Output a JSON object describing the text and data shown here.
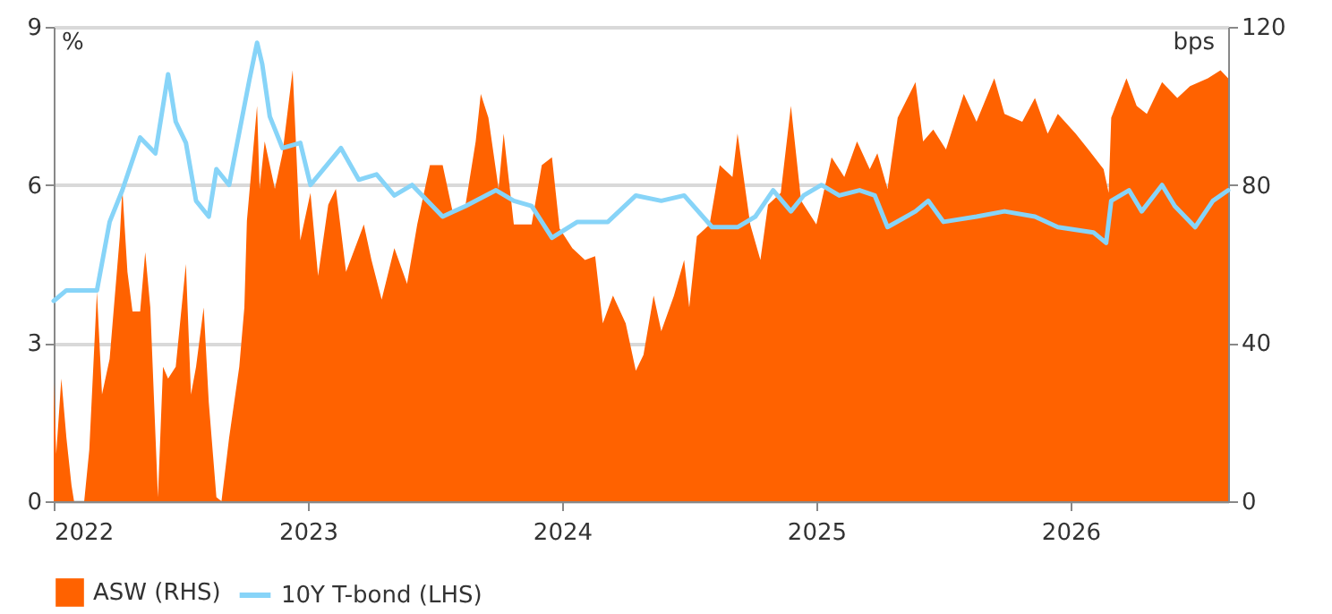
{
  "chart_data": {
    "type": "line",
    "ylabel": "%",
    "y2label": "bps",
    "xlim": [
      2022,
      2026.62
    ],
    "xticks": [
      2022,
      2023,
      2024,
      2025,
      2026
    ],
    "ylim": [
      0,
      9
    ],
    "yticks": [
      0,
      3,
      6,
      9
    ],
    "y2lim": [
      0,
      120
    ],
    "y2ticks": [
      0,
      40,
      80,
      120
    ],
    "grid": "y",
    "legend": "bottom",
    "line_style": "solid",
    "marker": "none",
    "series": [
      {
        "name": "ASW (RHS)",
        "type": "area",
        "axis": "y2",
        "color": "#ff6200",
        "x": [
          2022.0,
          2022.01,
          2022.03,
          2022.05,
          2022.07,
          2022.08,
          2022.12,
          2022.14,
          2022.17,
          2022.19,
          2022.22,
          2022.26,
          2022.27,
          2022.29,
          2022.31,
          2022.34,
          2022.36,
          2022.38,
          2022.41,
          2022.43,
          2022.45,
          2022.48,
          2022.52,
          2022.54,
          2022.56,
          2022.59,
          2022.61,
          2022.64,
          2022.66,
          2022.69,
          2022.73,
          2022.75,
          2022.76,
          2022.8,
          2022.81,
          2022.83,
          2022.87,
          2022.9,
          2022.94,
          2022.97,
          2023.01,
          2023.04,
          2023.08,
          2023.11,
          2023.15,
          2023.22,
          2023.25,
          2023.29,
          2023.34,
          2023.39,
          2023.43,
          2023.48,
          2023.53,
          2023.57,
          2023.62,
          2023.66,
          2023.68,
          2023.71,
          2023.75,
          2023.77,
          2023.81,
          2023.88,
          2023.92,
          2023.96,
          2023.99,
          2024.04,
          2024.09,
          2024.13,
          2024.16,
          2024.2,
          2024.25,
          2024.29,
          2024.32,
          2024.36,
          2024.39,
          2024.44,
          2024.48,
          2024.5,
          2024.53,
          2024.58,
          2024.62,
          2024.67,
          2024.69,
          2024.74,
          2024.78,
          2024.81,
          2024.86,
          2024.88,
          2024.9,
          2024.94,
          2025.0,
          2025.06,
          2025.11,
          2025.16,
          2025.21,
          2025.24,
          2025.28,
          2025.32,
          2025.39,
          2025.42,
          2025.46,
          2025.51,
          2025.58,
          2025.63,
          2025.7,
          2025.74,
          2025.81,
          2025.86,
          2025.91,
          2025.95,
          2026.02,
          2026.07,
          2026.13,
          2026.15,
          2026.16,
          2026.22,
          2026.26,
          2026.3,
          2026.36,
          2026.42,
          2026.47,
          2026.54,
          2026.59,
          2026.62
        ],
        "values": [
          30,
          12,
          31,
          16,
          4,
          0,
          0,
          13,
          53,
          27,
          36,
          67,
          79,
          58,
          48,
          48,
          63,
          49,
          1,
          34,
          31,
          34,
          60,
          27,
          34,
          49,
          25,
          1,
          0,
          16,
          34,
          49,
          71,
          100,
          79,
          91,
          79,
          88,
          109,
          66,
          78,
          57,
          75,
          79,
          58,
          70,
          61,
          51,
          64,
          55,
          70,
          85,
          85,
          73,
          75,
          91,
          103,
          97,
          79,
          93,
          70,
          70,
          85,
          87,
          69,
          64,
          61,
          62,
          45,
          52,
          45,
          33,
          37,
          52,
          43,
          52,
          61,
          49,
          67,
          70,
          85,
          82,
          93,
          70,
          61,
          75,
          78,
          89,
          100,
          76,
          70,
          87,
          82,
          91,
          84,
          88,
          79,
          97,
          106,
          91,
          94,
          89,
          103,
          96,
          107,
          98,
          96,
          102,
          93,
          98,
          93,
          89,
          84,
          78,
          97,
          107,
          100,
          98,
          106,
          102,
          105,
          107,
          109,
          107
        ]
      },
      {
        "name": "10Y T-bond (LHS)",
        "color": "#87d4f8",
        "x": [
          2022.0,
          2022.05,
          2022.17,
          2022.22,
          2022.27,
          2022.34,
          2022.4,
          2022.45,
          2022.48,
          2022.52,
          2022.56,
          2022.61,
          2022.64,
          2022.69,
          2022.73,
          2022.77,
          2022.8,
          2022.82,
          2022.85,
          2022.9,
          2022.97,
          2023.01,
          2023.13,
          2023.2,
          2023.27,
          2023.34,
          2023.41,
          2023.53,
          2023.62,
          2023.74,
          2023.81,
          2023.88,
          2023.96,
          2024.06,
          2024.18,
          2024.29,
          2024.39,
          2024.48,
          2024.59,
          2024.69,
          2024.76,
          2024.83,
          2024.9,
          2024.95,
          2025.02,
          2025.09,
          2025.17,
          2025.23,
          2025.28,
          2025.39,
          2025.44,
          2025.5,
          2025.63,
          2025.74,
          2025.86,
          2025.95,
          2026.09,
          2026.14,
          2026.16,
          2026.23,
          2026.28,
          2026.36,
          2026.41,
          2026.49,
          2026.56,
          2026.62
        ],
        "values": [
          3.8,
          4.0,
          4.0,
          5.3,
          5.9,
          6.9,
          6.6,
          8.1,
          7.2,
          6.8,
          5.7,
          5.4,
          6.3,
          6.0,
          7.0,
          8.0,
          8.7,
          8.3,
          7.3,
          6.7,
          6.8,
          6.0,
          6.7,
          6.1,
          6.2,
          5.8,
          6.0,
          5.4,
          5.6,
          5.9,
          5.7,
          5.6,
          5.0,
          5.3,
          5.3,
          5.8,
          5.7,
          5.8,
          5.2,
          5.2,
          5.4,
          5.9,
          5.5,
          5.8,
          6.0,
          5.8,
          5.9,
          5.8,
          5.2,
          5.5,
          5.7,
          5.3,
          5.4,
          5.5,
          5.4,
          5.2,
          5.1,
          4.9,
          5.7,
          5.9,
          5.5,
          6.0,
          5.6,
          5.2,
          5.7,
          5.9
        ]
      }
    ]
  }
}
